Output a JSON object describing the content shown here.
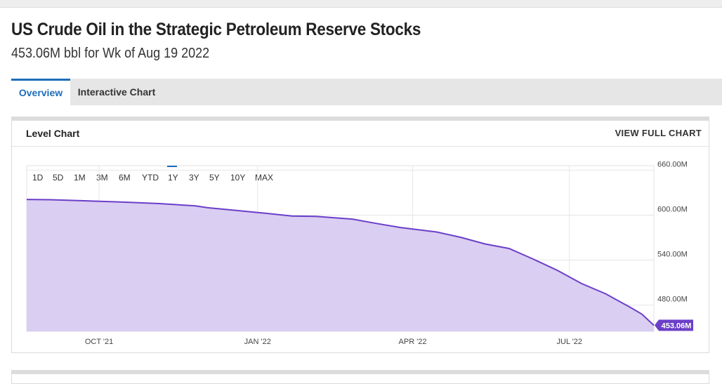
{
  "page": {
    "title": "US Crude Oil in the Strategic Petroleum Reserve Stocks",
    "subtitle": "453.06M bbl for Wk of Aug 19 2022"
  },
  "tabs": [
    {
      "label": "Overview",
      "active": true
    },
    {
      "label": "Interactive Chart",
      "active": false
    }
  ],
  "card": {
    "title": "Level Chart",
    "link": "VIEW FULL CHART"
  },
  "range_buttons": [
    {
      "label": "1D",
      "active": false
    },
    {
      "label": "5D",
      "active": false
    },
    {
      "label": "1M",
      "active": false
    },
    {
      "label": "3M",
      "active": false
    },
    {
      "label": "6M",
      "active": false
    },
    {
      "label": "YTD",
      "active": false
    },
    {
      "label": "1Y",
      "active": true
    },
    {
      "label": "3Y",
      "active": false
    },
    {
      "label": "5Y",
      "active": false
    },
    {
      "label": "10Y",
      "active": false
    },
    {
      "label": "MAX",
      "active": false
    }
  ],
  "colors": {
    "accent": "#1e6db8",
    "line": "#6b3fc9",
    "fill": "#d8cbf1",
    "badge": "#6b3fc9"
  },
  "chart_data": {
    "type": "area",
    "title": "",
    "xlabel": "",
    "ylabel": "",
    "x_start": "2021-08-20",
    "x_end": "2022-08-19",
    "xticks": [
      {
        "date": "2021-10-01",
        "label": "OCT '21"
      },
      {
        "date": "2022-01-01",
        "label": "JAN '22"
      },
      {
        "date": "2022-04-01",
        "label": "APR '22"
      },
      {
        "date": "2022-07-01",
        "label": "JUL '22"
      }
    ],
    "yticks": [
      {
        "value": 480,
        "label": "480.00M"
      },
      {
        "value": 540,
        "label": "540.00M"
      },
      {
        "value": 600,
        "label": "600.00M"
      },
      {
        "value": 660,
        "label": "660.00M"
      }
    ],
    "ylim": [
      445,
      666
    ],
    "grid": true,
    "last_value_label": "453.06M",
    "series": [
      {
        "values": [
          {
            "x": "2021-08-20",
            "y": 621.0
          },
          {
            "x": "2021-09-03",
            "y": 620.6
          },
          {
            "x": "2021-09-24",
            "y": 619.1
          },
          {
            "x": "2021-10-15",
            "y": 617.4
          },
          {
            "x": "2021-11-05",
            "y": 615.4
          },
          {
            "x": "2021-11-26",
            "y": 612.3
          },
          {
            "x": "2021-12-03",
            "y": 609.9
          },
          {
            "x": "2021-12-17",
            "y": 606.9
          },
          {
            "x": "2022-01-07",
            "y": 602.2
          },
          {
            "x": "2022-01-21",
            "y": 598.9
          },
          {
            "x": "2022-02-04",
            "y": 598.3
          },
          {
            "x": "2022-02-25",
            "y": 594.7
          },
          {
            "x": "2022-03-11",
            "y": 588.9
          },
          {
            "x": "2022-03-25",
            "y": 583.5
          },
          {
            "x": "2022-04-15",
            "y": 577.5
          },
          {
            "x": "2022-04-29",
            "y": 570.4
          },
          {
            "x": "2022-05-13",
            "y": 561.6
          },
          {
            "x": "2022-05-27",
            "y": 555.5
          },
          {
            "x": "2022-06-10",
            "y": 541.4
          },
          {
            "x": "2022-06-24",
            "y": 526.4
          },
          {
            "x": "2022-07-08",
            "y": 508.8
          },
          {
            "x": "2022-07-22",
            "y": 495.1
          },
          {
            "x": "2022-08-05",
            "y": 477.4
          },
          {
            "x": "2022-08-12",
            "y": 468.0
          },
          {
            "x": "2022-08-19",
            "y": 453.06
          }
        ]
      }
    ]
  }
}
